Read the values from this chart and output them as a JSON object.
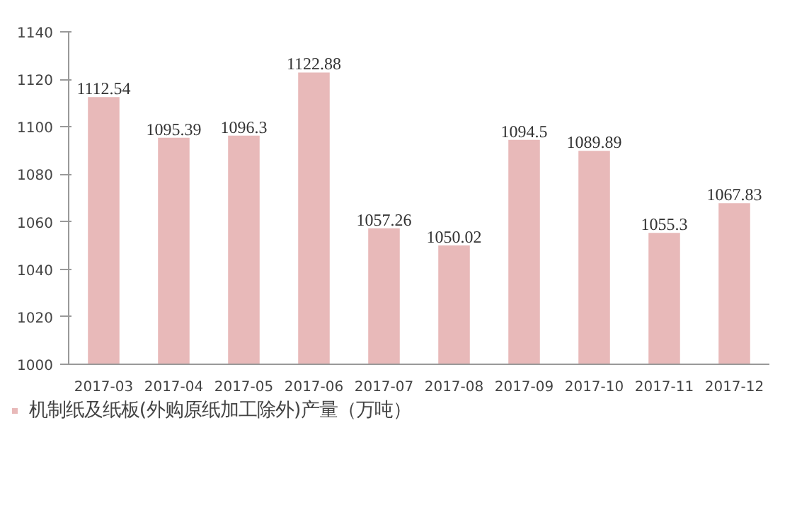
{
  "chart_data": {
    "type": "bar",
    "categories": [
      "2017-03",
      "2017-04",
      "2017-05",
      "2017-06",
      "2017-07",
      "2017-08",
      "2017-09",
      "2017-10",
      "2017-11",
      "2017-12"
    ],
    "series": [
      {
        "name": "机制纸及纸板(外购原纸加工除外)产量（万吨）",
        "color": "#e8b9b9",
        "values": [
          1112.54,
          1095.39,
          1096.3,
          1122.88,
          1057.26,
          1050.02,
          1094.5,
          1089.89,
          1055.3,
          1067.83
        ]
      }
    ],
    "ylim": [
      1000,
      1140
    ],
    "yticks": [
      1000,
      1020,
      1040,
      1060,
      1080,
      1100,
      1120,
      1140
    ],
    "data_labels": true,
    "legend": "bottom left",
    "grid": false
  }
}
